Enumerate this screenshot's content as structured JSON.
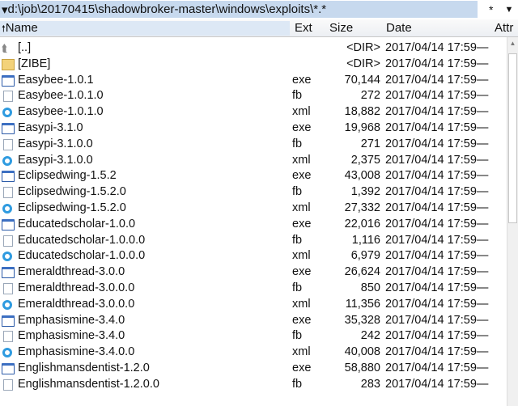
{
  "path_bar": {
    "path": "d:\\job\\20170415\\shadowbroker-master\\windows\\exploits\\*.*",
    "filter": "*",
    "dropdown": "▼",
    "path_arrow": "▾"
  },
  "columns": {
    "sort_arrow": "🠕",
    "name": "Name",
    "ext": "Ext",
    "size": "Size",
    "date": "Date",
    "attr": "Attr"
  },
  "files": [
    {
      "icon": "up",
      "name": "[..]",
      "ext": "",
      "size": "<DIR>",
      "date": "2017/04/14 17:59—"
    },
    {
      "icon": "folder",
      "name": "[ZIBE]",
      "ext": "",
      "size": "<DIR>",
      "date": "2017/04/14 17:59—"
    },
    {
      "icon": "exe",
      "name": "Easybee-1.0.1",
      "ext": "exe",
      "size": "70,144",
      "date": "2017/04/14 17:59—"
    },
    {
      "icon": "fb",
      "name": "Easybee-1.0.1.0",
      "ext": "fb",
      "size": "272",
      "date": "2017/04/14 17:59—"
    },
    {
      "icon": "xml",
      "name": "Easybee-1.0.1.0",
      "ext": "xml",
      "size": "18,882",
      "date": "2017/04/14 17:59—"
    },
    {
      "icon": "exe",
      "name": "Easypi-3.1.0",
      "ext": "exe",
      "size": "19,968",
      "date": "2017/04/14 17:59—"
    },
    {
      "icon": "fb",
      "name": "Easypi-3.1.0.0",
      "ext": "fb",
      "size": "271",
      "date": "2017/04/14 17:59—"
    },
    {
      "icon": "xml",
      "name": "Easypi-3.1.0.0",
      "ext": "xml",
      "size": "2,375",
      "date": "2017/04/14 17:59—"
    },
    {
      "icon": "exe",
      "name": "Eclipsedwing-1.5.2",
      "ext": "exe",
      "size": "43,008",
      "date": "2017/04/14 17:59—"
    },
    {
      "icon": "fb",
      "name": "Eclipsedwing-1.5.2.0",
      "ext": "fb",
      "size": "1,392",
      "date": "2017/04/14 17:59—"
    },
    {
      "icon": "xml",
      "name": "Eclipsedwing-1.5.2.0",
      "ext": "xml",
      "size": "27,332",
      "date": "2017/04/14 17:59—"
    },
    {
      "icon": "exe",
      "name": "Educatedscholar-1.0.0",
      "ext": "exe",
      "size": "22,016",
      "date": "2017/04/14 17:59—"
    },
    {
      "icon": "fb",
      "name": "Educatedscholar-1.0.0.0",
      "ext": "fb",
      "size": "1,116",
      "date": "2017/04/14 17:59—"
    },
    {
      "icon": "xml",
      "name": "Educatedscholar-1.0.0.0",
      "ext": "xml",
      "size": "6,979",
      "date": "2017/04/14 17:59—"
    },
    {
      "icon": "exe",
      "name": "Emeraldthread-3.0.0",
      "ext": "exe",
      "size": "26,624",
      "date": "2017/04/14 17:59—"
    },
    {
      "icon": "fb",
      "name": "Emeraldthread-3.0.0.0",
      "ext": "fb",
      "size": "850",
      "date": "2017/04/14 17:59—"
    },
    {
      "icon": "xml",
      "name": "Emeraldthread-3.0.0.0",
      "ext": "xml",
      "size": "11,356",
      "date": "2017/04/14 17:59—"
    },
    {
      "icon": "exe",
      "name": "Emphasismine-3.4.0",
      "ext": "exe",
      "size": "35,328",
      "date": "2017/04/14 17:59—"
    },
    {
      "icon": "fb",
      "name": "Emphasismine-3.4.0",
      "ext": "fb",
      "size": "242",
      "date": "2017/04/14 17:59—"
    },
    {
      "icon": "xml",
      "name": "Emphasismine-3.4.0.0",
      "ext": "xml",
      "size": "40,008",
      "date": "2017/04/14 17:59—"
    },
    {
      "icon": "exe",
      "name": "Englishmansdentist-1.2.0",
      "ext": "exe",
      "size": "58,880",
      "date": "2017/04/14 17:59—"
    },
    {
      "icon": "fb",
      "name": "Englishmansdentist-1.2.0.0",
      "ext": "fb",
      "size": "283",
      "date": "2017/04/14 17:59—"
    }
  ],
  "scrollbar": {
    "up_arrow": "▲"
  }
}
